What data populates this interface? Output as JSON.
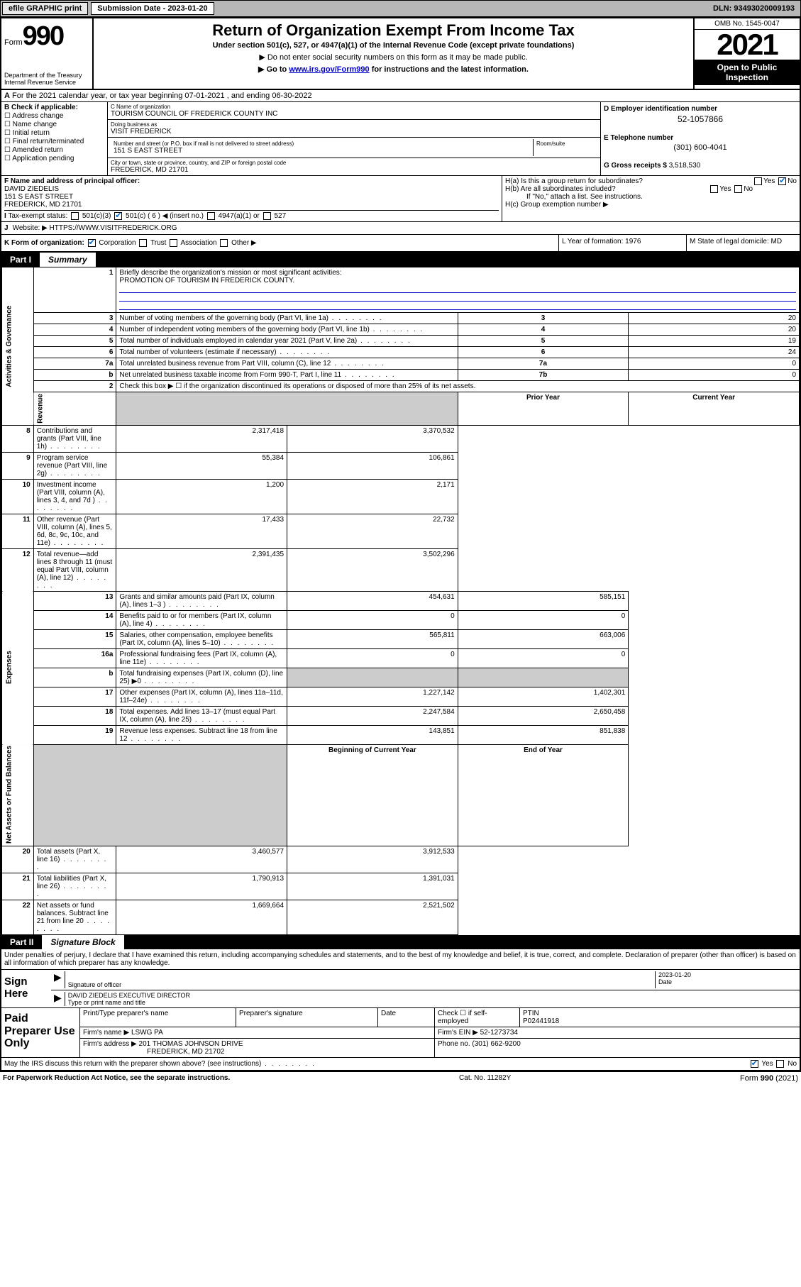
{
  "topbar": {
    "efile": "efile GRAPHIC print",
    "subdate_lbl": "Submission Date - 2023-01-20",
    "dln": "DLN: 93493020009193"
  },
  "header": {
    "form_word": "Form",
    "form_num": "990",
    "dept": "Department of the Treasury\nInternal Revenue Service",
    "title": "Return of Organization Exempt From Income Tax",
    "sub": "Under section 501(c), 527, or 4947(a)(1) of the Internal Revenue Code (except private foundations)",
    "note1": "▶ Do not enter social security numbers on this form as it may be made public.",
    "note2_pre": "▶ Go to ",
    "note2_link": "www.irs.gov/Form990",
    "note2_post": " for instructions and the latest information.",
    "omb": "OMB No. 1545-0047",
    "year": "2021",
    "inspect": "Open to Public Inspection"
  },
  "line_a": "For the 2021 calendar year, or tax year beginning 07-01-2021  , and ending 06-30-2022",
  "col_b": {
    "hdr": "B Check if applicable:",
    "items": [
      "Address change",
      "Name change",
      "Initial return",
      "Final return/terminated",
      "Amended return",
      "Application pending"
    ]
  },
  "col_c": {
    "name_lbl": "C Name of organization",
    "name": "TOURISM COUNCIL OF FREDERICK COUNTY INC",
    "dba_lbl": "Doing business as",
    "dba": "VISIT FREDERICK",
    "street_lbl": "Number and street (or P.O. box if mail is not delivered to street address)",
    "street": "151 S EAST STREET",
    "room_lbl": "Room/suite",
    "city_lbl": "City or town, state or province, country, and ZIP or foreign postal code",
    "city": "FREDERICK, MD  21701"
  },
  "col_d": {
    "d_lbl": "D Employer identification number",
    "d_val": "52-1057866",
    "e_lbl": "E Telephone number",
    "e_val": "(301) 600-4041",
    "g_lbl": "G Gross receipts $",
    "g_val": "3,518,530"
  },
  "row_f": {
    "lbl": "F Name and address of principal officer:",
    "name": "DAVID ZIEDELIS",
    "addr1": "151 S EAST STREET",
    "addr2": "FREDERICK, MD  21701"
  },
  "row_h": {
    "ha": "H(a)  Is this a group return for subordinates?",
    "hb": "H(b)  Are all subordinates included?",
    "hb_note": "If \"No,\" attach a list. See instructions.",
    "hc": "H(c)  Group exemption number ▶"
  },
  "row_i": {
    "lbl": "Tax-exempt status:",
    "c3": "501(c)(3)",
    "c": "501(c) ( 6 ) ◀ (insert no.)",
    "a1": "4947(a)(1) or",
    "s527": "527"
  },
  "row_j": {
    "lbl": "J",
    "txt": "Website: ▶  HTTPS://WWW.VISITFREDERICK.ORG"
  },
  "row_k": {
    "lbl": "K Form of organization:",
    "corp": "Corporation",
    "trust": "Trust",
    "assoc": "Association",
    "other": "Other ▶"
  },
  "row_l": {
    "txt": "L Year of formation: 1976"
  },
  "row_m": {
    "txt": "M State of legal domicile: MD"
  },
  "parts": {
    "p1": "Part I",
    "p1t": "Summary",
    "p2": "Part II",
    "p2t": "Signature Block"
  },
  "sides": {
    "gov": "Activities & Governance",
    "rev": "Revenue",
    "exp": "Expenses",
    "net": "Net Assets or Fund Balances"
  },
  "summary": {
    "l1": "Briefly describe the organization's mission or most significant activities:",
    "l1v": "PROMOTION OF TOURISM IN FREDERICK COUNTY.",
    "l2": "Check this box ▶ ☐  if the organization discontinued its operations or disposed of more than 25% of its net assets.",
    "rows_gov": [
      {
        "n": "3",
        "t": "Number of voting members of the governing body (Part VI, line 1a)",
        "c": "3",
        "v": "20"
      },
      {
        "n": "4",
        "t": "Number of independent voting members of the governing body (Part VI, line 1b)",
        "c": "4",
        "v": "20"
      },
      {
        "n": "5",
        "t": "Total number of individuals employed in calendar year 2021 (Part V, line 2a)",
        "c": "5",
        "v": "19"
      },
      {
        "n": "6",
        "t": "Total number of volunteers (estimate if necessary)",
        "c": "6",
        "v": "24"
      },
      {
        "n": "7a",
        "t": "Total unrelated business revenue from Part VIII, column (C), line 12",
        "c": "7a",
        "v": "0"
      },
      {
        "n": "b",
        "t": "Net unrelated business taxable income from Form 990-T, Part I, line 11",
        "c": "7b",
        "v": "0"
      }
    ],
    "col_hdr_prior": "Prior Year",
    "col_hdr_curr": "Current Year",
    "rows_rev": [
      {
        "n": "8",
        "t": "Contributions and grants (Part VIII, line 1h)",
        "p": "2,317,418",
        "c": "3,370,532"
      },
      {
        "n": "9",
        "t": "Program service revenue (Part VIII, line 2g)",
        "p": "55,384",
        "c": "106,861"
      },
      {
        "n": "10",
        "t": "Investment income (Part VIII, column (A), lines 3, 4, and 7d )",
        "p": "1,200",
        "c": "2,171"
      },
      {
        "n": "11",
        "t": "Other revenue (Part VIII, column (A), lines 5, 6d, 8c, 9c, 10c, and 11e)",
        "p": "17,433",
        "c": "22,732"
      },
      {
        "n": "12",
        "t": "Total revenue—add lines 8 through 11 (must equal Part VIII, column (A), line 12)",
        "p": "2,391,435",
        "c": "3,502,296"
      }
    ],
    "rows_exp": [
      {
        "n": "13",
        "t": "Grants and similar amounts paid (Part IX, column (A), lines 1–3 )",
        "p": "454,631",
        "c": "585,151"
      },
      {
        "n": "14",
        "t": "Benefits paid to or for members (Part IX, column (A), line 4)",
        "p": "0",
        "c": "0"
      },
      {
        "n": "15",
        "t": "Salaries, other compensation, employee benefits (Part IX, column (A), lines 5–10)",
        "p": "565,811",
        "c": "663,006"
      },
      {
        "n": "16a",
        "t": "Professional fundraising fees (Part IX, column (A), line 11e)",
        "p": "0",
        "c": "0"
      },
      {
        "n": "b",
        "t": "Total fundraising expenses (Part IX, column (D), line 25) ▶0",
        "p": "",
        "c": "",
        "shade": true
      },
      {
        "n": "17",
        "t": "Other expenses (Part IX, column (A), lines 11a–11d, 11f–24e)",
        "p": "1,227,142",
        "c": "1,402,301"
      },
      {
        "n": "18",
        "t": "Total expenses. Add lines 13–17 (must equal Part IX, column (A), line 25)",
        "p": "2,247,584",
        "c": "2,650,458"
      },
      {
        "n": "19",
        "t": "Revenue less expenses. Subtract line 18 from line 12",
        "p": "143,851",
        "c": "851,838"
      }
    ],
    "col_hdr_beg": "Beginning of Current Year",
    "col_hdr_end": "End of Year",
    "rows_net": [
      {
        "n": "20",
        "t": "Total assets (Part X, line 16)",
        "p": "3,460,577",
        "c": "3,912,533"
      },
      {
        "n": "21",
        "t": "Total liabilities (Part X, line 26)",
        "p": "1,790,913",
        "c": "1,391,031"
      },
      {
        "n": "22",
        "t": "Net assets or fund balances. Subtract line 21 from line 20",
        "p": "1,669,664",
        "c": "2,521,502"
      }
    ]
  },
  "sig": {
    "decl": "Under penalties of perjury, I declare that I have examined this return, including accompanying schedules and statements, and to the best of my knowledge and belief, it is true, correct, and complete. Declaration of preparer (other than officer) is based on all information of which preparer has any knowledge.",
    "sign_here": "Sign Here",
    "sig_officer": "Signature of officer",
    "date_lbl": "Date",
    "date_val": "2023-01-20",
    "name_title": "DAVID ZIEDELIS  EXECUTIVE DIRECTOR",
    "name_title_lbl": "Type or print name and title"
  },
  "prep": {
    "lbl": "Paid Preparer Use Only",
    "pt_name_lbl": "Print/Type preparer's name",
    "psig_lbl": "Preparer's signature",
    "pdate_lbl": "Date",
    "check_lbl": "Check ☐ if self-employed",
    "ptin_lbl": "PTIN",
    "ptin": "P02441918",
    "firm_name_lbl": "Firm's name   ▶",
    "firm_name": "LSWG PA",
    "firm_ein_lbl": "Firm's EIN ▶",
    "firm_ein": "52-1273734",
    "firm_addr_lbl": "Firm's address ▶",
    "firm_addr1": "201 THOMAS JOHNSON DRIVE",
    "firm_addr2": "FREDERICK, MD  21702",
    "phone_lbl": "Phone no.",
    "phone": "(301) 662-9200",
    "discuss": "May the IRS discuss this return with the preparer shown above? (see instructions)"
  },
  "footer": {
    "pra": "For Paperwork Reduction Act Notice, see the separate instructions.",
    "cat": "Cat. No. 11282Y",
    "form": "Form 990 (2021)"
  }
}
